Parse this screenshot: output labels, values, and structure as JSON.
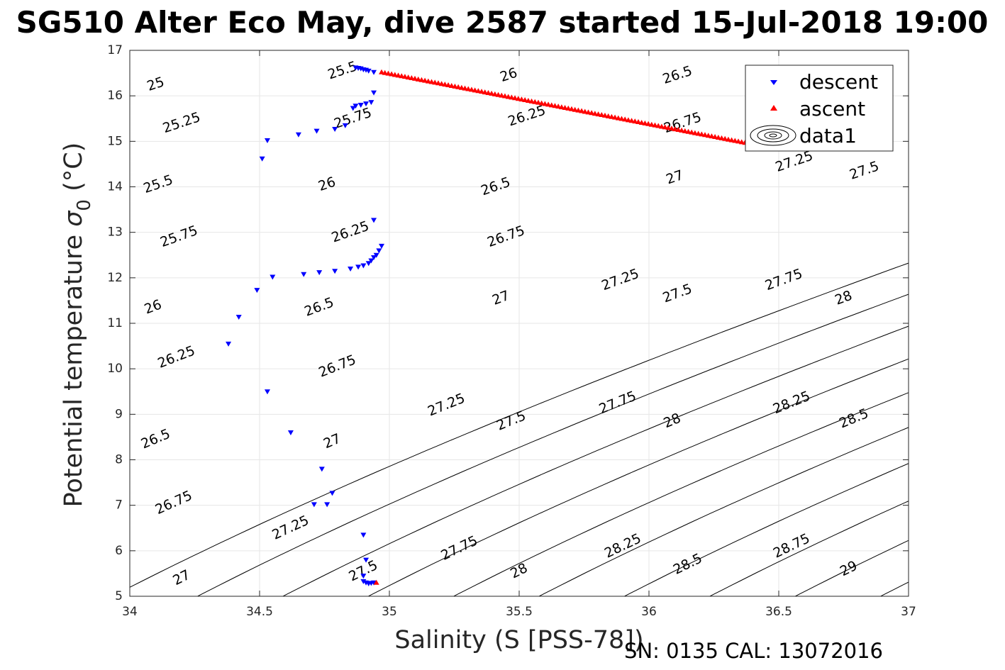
{
  "chart_data": {
    "type": "scatter",
    "title": "SG510 Alter Eco May, dive 2587 started 15-Jul-2018 19:00",
    "xlabel": "Salinity (S [PSS-78])",
    "ylabel_main": "Potential temperature ",
    "ylabel_symbol": "σ",
    "ylabel_sub": "0",
    "ylabel_unit": " (°C)",
    "xlim": [
      34,
      37
    ],
    "ylim": [
      5,
      17
    ],
    "xticks": [
      "34",
      "34.5",
      "35",
      "35.5",
      "36",
      "36.5",
      "37"
    ],
    "yticks": [
      "5",
      "6",
      "7",
      "8",
      "9",
      "10",
      "11",
      "12",
      "13",
      "14",
      "15",
      "16",
      "17"
    ],
    "grid": true,
    "legend_position": "top-right",
    "contours": {
      "levels": [
        24.75,
        25,
        25.25,
        25.5,
        25.75,
        26,
        26.25,
        26.5,
        26.75,
        27,
        27.25,
        27.5,
        27.75,
        28,
        28.25,
        28.5,
        28.75,
        29
      ],
      "labels": [
        {
          "text": "25",
          "x": 34.1,
          "y": 16.25
        },
        {
          "text": "25.25",
          "x": 34.2,
          "y": 15.4
        },
        {
          "text": "25.5",
          "x": 34.11,
          "y": 14.05
        },
        {
          "text": "25.75",
          "x": 34.19,
          "y": 12.9
        },
        {
          "text": "26",
          "x": 34.09,
          "y": 11.35
        },
        {
          "text": "26.25",
          "x": 34.18,
          "y": 10.25
        },
        {
          "text": "26.5",
          "x": 34.1,
          "y": 8.45
        },
        {
          "text": "26.75",
          "x": 34.17,
          "y": 7.05
        },
        {
          "text": "27",
          "x": 34.2,
          "y": 5.4
        },
        {
          "text": "25.5",
          "x": 34.82,
          "y": 16.55
        },
        {
          "text": "25.75",
          "x": 34.86,
          "y": 15.5
        },
        {
          "text": "26",
          "x": 34.76,
          "y": 14.05
        },
        {
          "text": "26.25",
          "x": 34.85,
          "y": 13.0
        },
        {
          "text": "26.5",
          "x": 34.73,
          "y": 11.35
        },
        {
          "text": "26.75",
          "x": 34.8,
          "y": 10.05
        },
        {
          "text": "27",
          "x": 34.78,
          "y": 8.4
        },
        {
          "text": "27.25",
          "x": 34.62,
          "y": 6.5
        },
        {
          "text": "27.5",
          "x": 34.9,
          "y": 5.55
        },
        {
          "text": "26",
          "x": 35.46,
          "y": 16.45
        },
        {
          "text": "26.25",
          "x": 35.53,
          "y": 15.55
        },
        {
          "text": "26.5",
          "x": 35.41,
          "y": 14.0
        },
        {
          "text": "26.75",
          "x": 35.45,
          "y": 12.9
        },
        {
          "text": "27",
          "x": 35.43,
          "y": 11.55
        },
        {
          "text": "27.25",
          "x": 35.22,
          "y": 9.2
        },
        {
          "text": "27.5",
          "x": 35.47,
          "y": 8.85
        },
        {
          "text": "27.75",
          "x": 35.27,
          "y": 6.05
        },
        {
          "text": "28",
          "x": 35.5,
          "y": 5.55
        },
        {
          "text": "26.5",
          "x": 36.11,
          "y": 16.45
        },
        {
          "text": "26.75",
          "x": 36.13,
          "y": 15.4
        },
        {
          "text": "27",
          "x": 36.1,
          "y": 14.2
        },
        {
          "text": "27.25",
          "x": 35.89,
          "y": 11.95
        },
        {
          "text": "27.5",
          "x": 36.11,
          "y": 11.65
        },
        {
          "text": "27.75",
          "x": 35.88,
          "y": 9.25
        },
        {
          "text": "28",
          "x": 36.09,
          "y": 8.85
        },
        {
          "text": "28.25",
          "x": 35.9,
          "y": 6.1
        },
        {
          "text": "28.5",
          "x": 36.15,
          "y": 5.7
        },
        {
          "text": "27.25",
          "x": 36.56,
          "y": 14.55
        },
        {
          "text": "27.5",
          "x": 36.83,
          "y": 14.35
        },
        {
          "text": "27.75",
          "x": 36.52,
          "y": 11.95
        },
        {
          "text": "28",
          "x": 36.75,
          "y": 11.55
        },
        {
          "text": "28.25",
          "x": 36.55,
          "y": 9.25
        },
        {
          "text": "28.5",
          "x": 36.79,
          "y": 8.9
        },
        {
          "text": "28.75",
          "x": 36.55,
          "y": 6.1
        },
        {
          "text": "29",
          "x": 36.77,
          "y": 5.6
        }
      ]
    },
    "series": [
      {
        "name": "descent",
        "marker": "triangle-down",
        "color": "#0000ff",
        "points": [
          [
            34.87,
            16.62
          ],
          [
            34.88,
            16.61
          ],
          [
            34.89,
            16.6
          ],
          [
            34.9,
            16.58
          ],
          [
            34.91,
            16.57
          ],
          [
            34.92,
            16.55
          ],
          [
            34.94,
            16.52
          ],
          [
            34.86,
            15.73
          ],
          [
            34.87,
            15.78
          ],
          [
            34.89,
            15.8
          ],
          [
            34.91,
            15.83
          ],
          [
            34.93,
            15.86
          ],
          [
            34.94,
            16.07
          ],
          [
            34.83,
            15.35
          ],
          [
            34.79,
            15.27
          ],
          [
            34.72,
            15.23
          ],
          [
            34.65,
            15.15
          ],
          [
            34.53,
            15.02
          ],
          [
            34.51,
            14.62
          ],
          [
            34.94,
            13.27
          ],
          [
            34.97,
            12.7
          ],
          [
            34.96,
            12.6
          ],
          [
            34.95,
            12.5
          ],
          [
            34.94,
            12.45
          ],
          [
            34.93,
            12.38
          ],
          [
            34.92,
            12.32
          ],
          [
            34.9,
            12.27
          ],
          [
            34.88,
            12.24
          ],
          [
            34.85,
            12.2
          ],
          [
            34.79,
            12.15
          ],
          [
            34.73,
            12.12
          ],
          [
            34.67,
            12.08
          ],
          [
            34.55,
            12.02
          ],
          [
            34.49,
            11.73
          ],
          [
            34.42,
            11.14
          ],
          [
            34.38,
            10.55
          ],
          [
            34.53,
            9.5
          ],
          [
            34.62,
            8.6
          ],
          [
            34.74,
            7.8
          ],
          [
            34.78,
            7.27
          ],
          [
            34.71,
            7.02
          ],
          [
            34.76,
            7.02
          ],
          [
            34.9,
            6.35
          ],
          [
            34.91,
            5.8
          ],
          [
            34.9,
            5.45
          ],
          [
            34.9,
            5.33
          ],
          [
            34.91,
            5.3
          ],
          [
            34.92,
            5.28
          ],
          [
            34.93,
            5.29
          ],
          [
            34.94,
            5.3
          ]
        ]
      },
      {
        "name": "ascent",
        "marker": "triangle-up",
        "color": "#ff0000",
        "start": [
          34.97,
          16.52
        ],
        "end": [
          36.37,
          14.97
        ],
        "count": 110,
        "extra_points": [
          [
            34.95,
            5.3
          ]
        ]
      }
    ],
    "legend": [
      {
        "label": "descent",
        "marker": "triangle-down",
        "color": "#0000ff"
      },
      {
        "label": "ascent",
        "marker": "triangle-up",
        "color": "#ff0000"
      },
      {
        "label": "data1",
        "marker": "contour"
      }
    ]
  },
  "footer": "SN: 0135  CAL: 13072016"
}
